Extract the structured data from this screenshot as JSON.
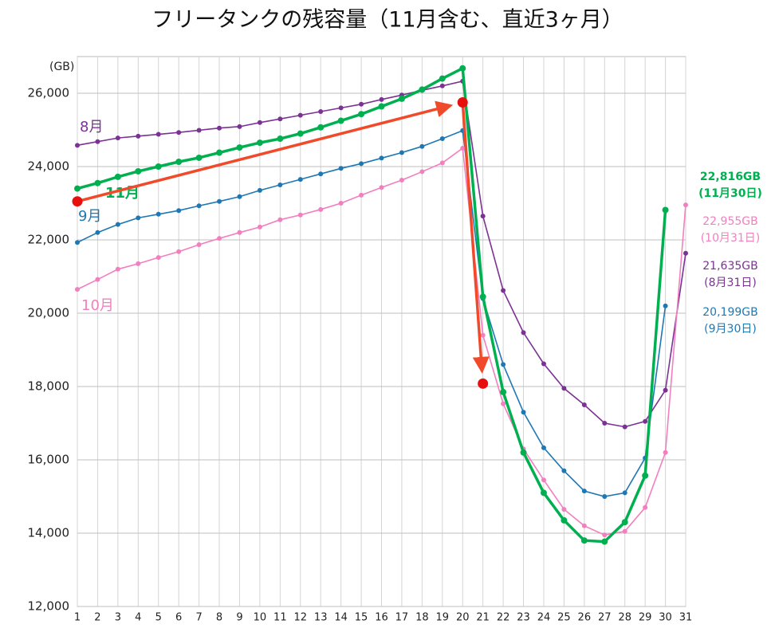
{
  "chart_data": {
    "type": "line",
    "title": "フリータンクの残容量（11月含む、直近3ヶ月）",
    "y_unit_label": "(GB)",
    "x": [
      1,
      2,
      3,
      4,
      5,
      6,
      7,
      8,
      9,
      10,
      11,
      12,
      13,
      14,
      15,
      16,
      17,
      18,
      19,
      20,
      21,
      22,
      23,
      24,
      25,
      26,
      27,
      28,
      29,
      30,
      31
    ],
    "xlim": [
      1,
      31
    ],
    "xticks": [
      1,
      2,
      3,
      4,
      5,
      6,
      7,
      8,
      9,
      10,
      11,
      12,
      13,
      14,
      15,
      16,
      17,
      18,
      19,
      20,
      21,
      22,
      23,
      24,
      25,
      26,
      27,
      28,
      29,
      30,
      31
    ],
    "ylim": [
      12000,
      27000
    ],
    "yticks": [
      {
        "value": 12000,
        "label": "12,000"
      },
      {
        "value": 14000,
        "label": "14,000"
      },
      {
        "value": 16000,
        "label": "16,000"
      },
      {
        "value": 18000,
        "label": "18,000"
      },
      {
        "value": 20000,
        "label": "20,000"
      },
      {
        "value": 22000,
        "label": "22,000"
      },
      {
        "value": 24000,
        "label": "24,000"
      },
      {
        "value": 26000,
        "label": "26,000"
      }
    ],
    "grid": true,
    "series": [
      {
        "name": "8月",
        "color": "#7b3294",
        "values": [
          24580,
          24680,
          24780,
          24830,
          24880,
          24930,
          24990,
          25050,
          25090,
          25200,
          25300,
          25400,
          25500,
          25600,
          25700,
          25830,
          25950,
          26080,
          26200,
          26330,
          22650,
          20620,
          19470,
          18620,
          17950,
          17500,
          17000,
          16900,
          17050,
          17900,
          21635
        ]
      },
      {
        "name": "9月",
        "color": "#1f78b4",
        "values": [
          21930,
          22200,
          22420,
          22600,
          22700,
          22800,
          22930,
          23050,
          23180,
          23350,
          23500,
          23650,
          23800,
          23950,
          24080,
          24230,
          24380,
          24550,
          24760,
          24980,
          20400,
          18600,
          17300,
          16330,
          15700,
          15150,
          15000,
          15100,
          16050,
          20199,
          null
        ]
      },
      {
        "name": "10月",
        "color": "#f27fbf",
        "values": [
          20650,
          20920,
          21200,
          21350,
          21520,
          21680,
          21870,
          22040,
          22200,
          22350,
          22550,
          22680,
          22830,
          23000,
          23220,
          23430,
          23630,
          23860,
          24100,
          24500,
          19400,
          17530,
          16300,
          15450,
          14650,
          14200,
          13950,
          14050,
          14700,
          16200,
          22955
        ]
      },
      {
        "name": "11月",
        "color": "#00b050",
        "values": [
          23400,
          23550,
          23720,
          23870,
          24000,
          24130,
          24240,
          24380,
          24520,
          24650,
          24760,
          24900,
          25070,
          25250,
          25430,
          25640,
          25850,
          26100,
          26400,
          26680,
          20450,
          17850,
          16200,
          15100,
          14350,
          13800,
          13770,
          14300,
          15570,
          22816,
          null
        ]
      }
    ],
    "end_labels": [
      {
        "text": "22,816GB",
        "sub": "(11月30日)",
        "color": "#00b050"
      },
      {
        "text": "22,955GB",
        "sub": "(10月31日)",
        "color": "#f27fbf"
      },
      {
        "text": "21,635GB",
        "sub": "(8月31日)",
        "color": "#7b3294"
      },
      {
        "text": "20,199GB",
        "sub": "(9月30日)",
        "color": "#1f78b4"
      }
    ],
    "arrow": {
      "color": "#f04a2a",
      "x": [
        1,
        20,
        21
      ],
      "y": [
        23050,
        25750,
        18080
      ]
    }
  }
}
